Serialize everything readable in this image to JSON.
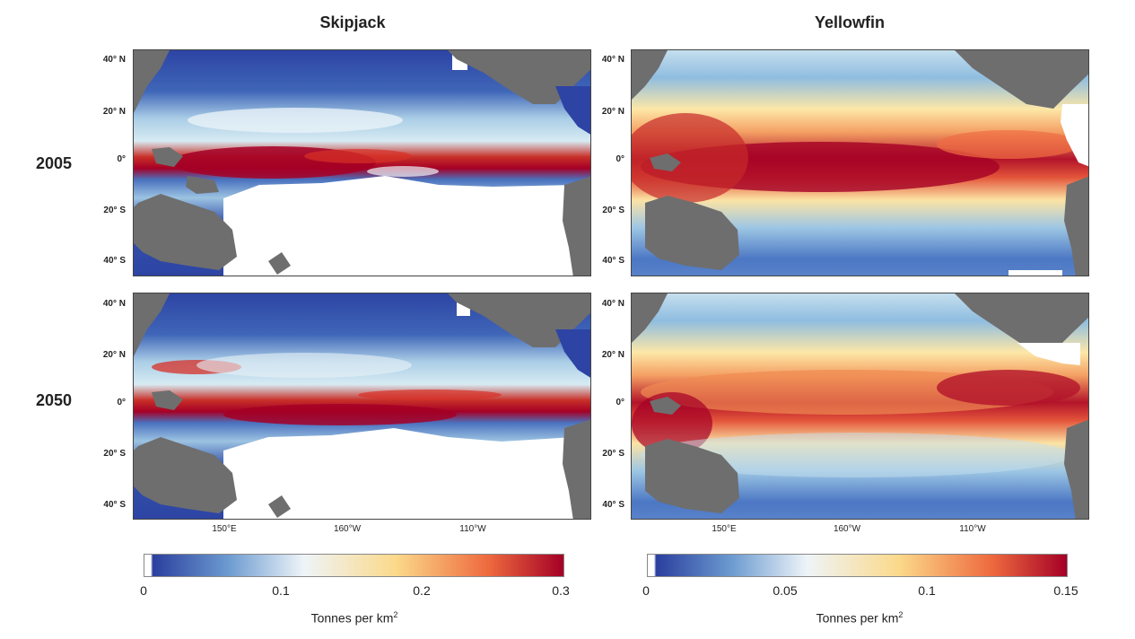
{
  "columns": {
    "skipjack": "Skipjack",
    "yellowfin": "Yellowfin"
  },
  "rows": {
    "r2005": "2005",
    "r2050": "2050"
  },
  "lat_labels": [
    "40° N",
    "20° N",
    "0°",
    "20° S",
    "40° S"
  ],
  "lon_labels": [
    "150°E",
    "160°W",
    "110°W"
  ],
  "colorbars": {
    "skipjack": {
      "ticks": [
        "0",
        "0.1",
        "0.2",
        "0.3"
      ],
      "title": "Tonnes per km",
      "title_sup": "2"
    },
    "yellowfin": {
      "ticks": [
        "0",
        "0.05",
        "0.1",
        "0.15"
      ],
      "title": "Tonnes per km",
      "title_sup": "2"
    }
  },
  "colors": {
    "land": "#6e6e6e",
    "low": "#2b3f9e",
    "mid": "#f4f6f8",
    "high": "#a50026"
  }
}
